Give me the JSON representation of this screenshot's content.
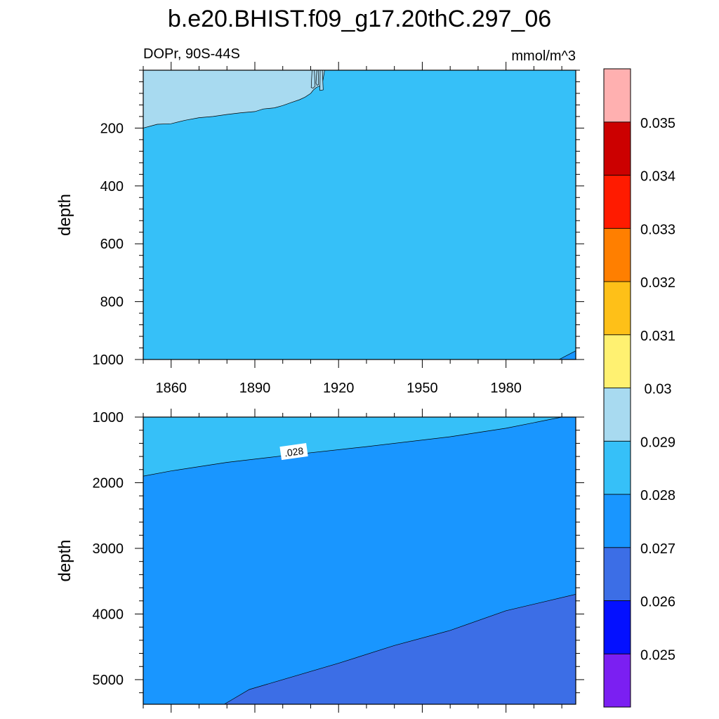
{
  "chart_data": {
    "type": "heatmap",
    "title": "b.e20.BHIST.f09_g17.20thC.297_06",
    "left_label": "DOPr, 90S-44S",
    "units": "mmol/m^3",
    "colorbar": {
      "levels": [
        "0.025",
        "0.026",
        "0.027",
        "0.028",
        "0.029",
        "0.03",
        "0.031",
        "0.032",
        "0.033",
        "0.034",
        "0.035"
      ],
      "colors": [
        "#7b1ff2",
        "#0410ff",
        "#3c6ee6",
        "#1996ff",
        "#36c0f8",
        "#a8daf0",
        "#fff171",
        "#fec018",
        "#ff7f00",
        "#ff1b00",
        "#cc0000",
        "#ffb0b0"
      ]
    },
    "panels": [
      {
        "name": "upper",
        "ylabel": "depth",
        "yrange": [
          0,
          1000
        ],
        "yticks": [
          200,
          400,
          600,
          800,
          1000
        ],
        "xrange": [
          1850,
          2005
        ],
        "xticks": [
          1860,
          1890,
          1920,
          1950,
          1980
        ],
        "xtick_labels": [
          "1860",
          "1890",
          "1920",
          "1950",
          "1980"
        ],
        "background_color": "#36c0f8",
        "regions": [
          {
            "color": "#a8daf0",
            "polygon": [
              [
                1850,
                0
              ],
              [
                1850,
                200
              ],
              [
                1855,
                187
              ],
              [
                1860,
                185
              ],
              [
                1865,
                173
              ],
              [
                1870,
                164
              ],
              [
                1875,
                160
              ],
              [
                1880,
                153
              ],
              [
                1885,
                147
              ],
              [
                1890,
                143
              ],
              [
                1893,
                134
              ],
              [
                1897,
                130
              ],
              [
                1900,
                122
              ],
              [
                1903,
                112
              ],
              [
                1906,
                102
              ],
              [
                1908,
                93
              ],
              [
                1910,
                80
              ],
              [
                1911,
                68
              ],
              [
                1912,
                60
              ],
              [
                1913,
                55
              ],
              [
                1914,
                58
              ],
              [
                1915,
                0
              ]
            ]
          },
          {
            "color": "#a8daf0",
            "polygon": [
              [
                1910.2,
                60
              ],
              [
                1910.5,
                0
              ],
              [
                1911.3,
                0
              ],
              [
                1911.6,
                55
              ],
              [
                1910.9,
                62
              ]
            ]
          },
          {
            "color": "#a8daf0",
            "polygon": [
              [
                1911.9,
                45
              ],
              [
                1912.2,
                0
              ],
              [
                1912.7,
                0
              ],
              [
                1912.8,
                50
              ],
              [
                1912.3,
                52
              ]
            ]
          },
          {
            "color": "#a8daf0",
            "polygon": [
              [
                1913.3,
                70
              ],
              [
                1913.4,
                0
              ],
              [
                1914.2,
                0
              ],
              [
                1914.5,
                68
              ]
            ]
          },
          {
            "color": "#1996ff",
            "polygon": [
              [
                2005,
                1000
              ],
              [
                1999,
                1000
              ],
              [
                2005,
                970
              ]
            ]
          }
        ]
      },
      {
        "name": "lower",
        "ylabel": "depth",
        "yrange": [
          1000,
          5375
        ],
        "yticks": [
          1000,
          2000,
          3000,
          4000,
          5000
        ],
        "xrange": [
          1850,
          2005
        ],
        "xticks": [
          1860,
          1890,
          1920,
          1950,
          1980
        ],
        "background_color": "#1996ff",
        "contour_label": ".028",
        "contour_label_at": [
          1904,
          1530
        ],
        "regions": [
          {
            "color": "#36c0f8",
            "polygon": [
              [
                1850,
                1000
              ],
              [
                1850,
                1900
              ],
              [
                1860,
                1820
              ],
              [
                1880,
                1690
              ],
              [
                1900,
                1590
              ],
              [
                1930,
                1450
              ],
              [
                1960,
                1300
              ],
              [
                1980,
                1170
              ],
              [
                2000,
                1000
              ]
            ]
          },
          {
            "color": "#3c6ee6",
            "polygon": [
              [
                1879,
                5375
              ],
              [
                1882,
                5300
              ],
              [
                1888,
                5150
              ],
              [
                1900,
                5000
              ],
              [
                1920,
                4750
              ],
              [
                1940,
                4480
              ],
              [
                1960,
                4250
              ],
              [
                1980,
                3950
              ],
              [
                2005,
                3700
              ],
              [
                2005,
                5375
              ]
            ]
          }
        ]
      }
    ]
  }
}
